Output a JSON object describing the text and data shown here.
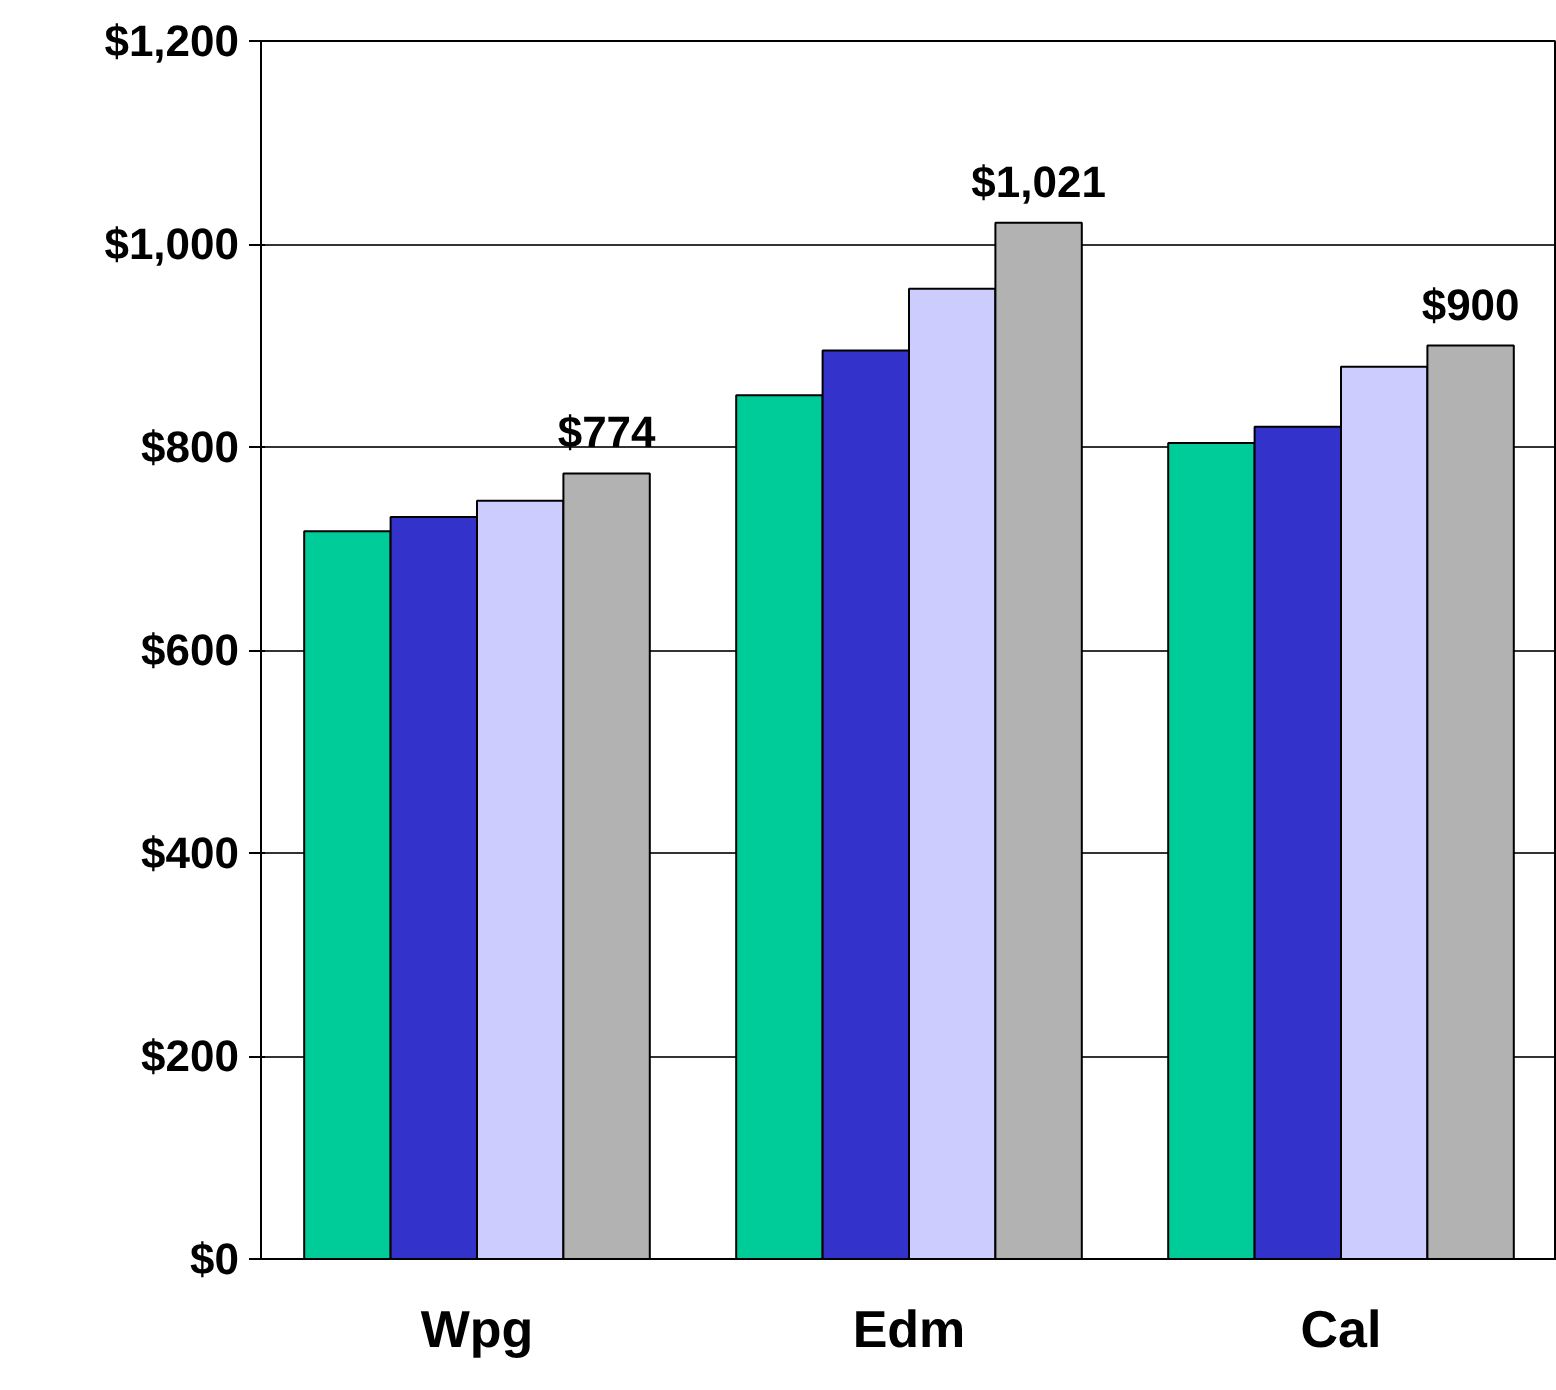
{
  "chart_data": {
    "type": "bar",
    "categories": [
      "Wpg",
      "Edm",
      "Cal"
    ],
    "series": [
      {
        "color": "#00cc99",
        "values": [
          717,
          851,
          804
        ]
      },
      {
        "color": "#3333cc",
        "values": [
          731,
          895,
          820
        ]
      },
      {
        "color": "#ccccff",
        "values": [
          747,
          956,
          879
        ]
      },
      {
        "color": "#b2b2b2",
        "values": [
          774,
          1021,
          900
        ],
        "value_labels": [
          "$774",
          "$1,021",
          "$900"
        ]
      }
    ],
    "ylim": [
      0,
      1200
    ],
    "yticks": [
      {
        "value": 0,
        "label": "$0"
      },
      {
        "value": 200,
        "label": "$200"
      },
      {
        "value": 400,
        "label": "$400"
      },
      {
        "value": 600,
        "label": "$600"
      },
      {
        "value": 800,
        "label": "$800"
      },
      {
        "value": 1000,
        "label": "$1,000"
      },
      {
        "value": 1200,
        "label": "$1,200"
      }
    ],
    "grid": "y"
  }
}
